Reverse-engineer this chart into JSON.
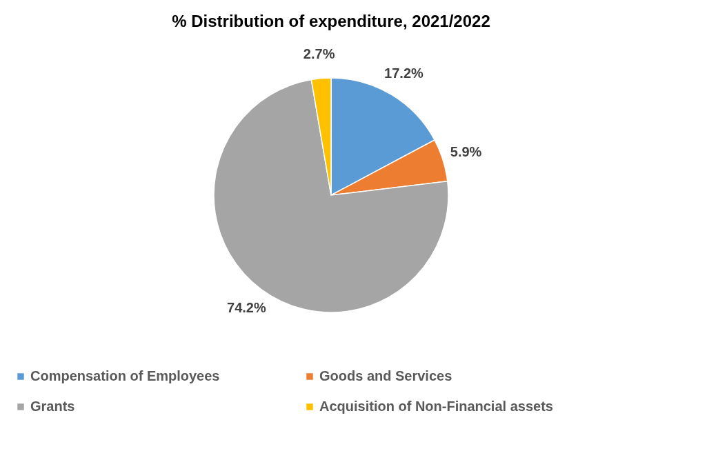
{
  "chart_data": {
    "type": "pie",
    "title": "% Distribution of expenditure, 2021/2022",
    "categories": [
      "Compensation of Employees",
      "Goods and Services",
      "Grants",
      "Acquisition of Non-Financial assets"
    ],
    "values": [
      17.2,
      5.9,
      74.2,
      2.7
    ],
    "colors": [
      "#5b9bd5",
      "#ed7d31",
      "#a5a5a5",
      "#ffc000"
    ],
    "value_labels": [
      "17.2%",
      "5.9%",
      "74.2%",
      "2.7%"
    ],
    "legend": "bottom"
  }
}
